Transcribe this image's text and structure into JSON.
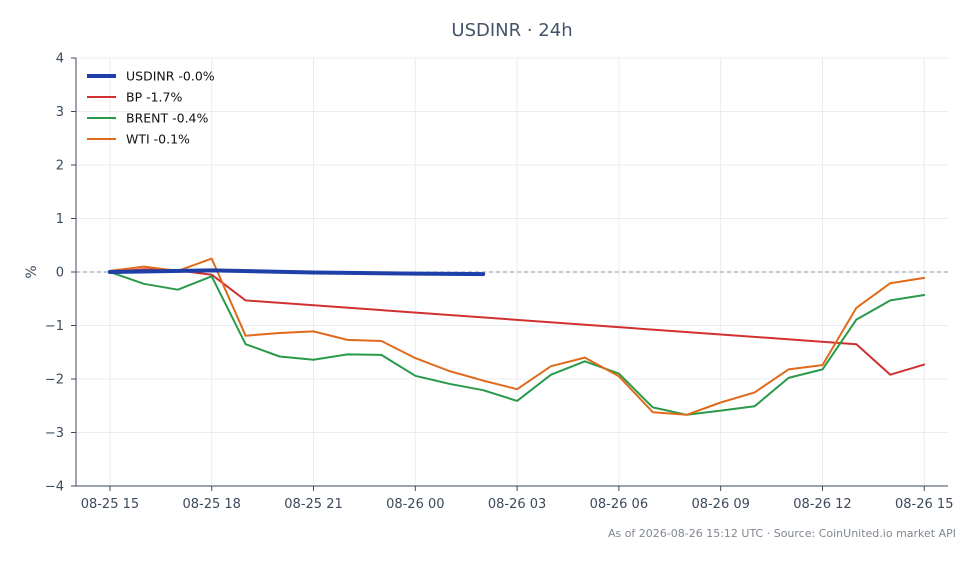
{
  "chart_data": {
    "type": "line",
    "title": "USDINR · 24h",
    "xlabel": "",
    "ylabel": "%",
    "ylim": [
      -4,
      4
    ],
    "xlim": [
      "2026-08-25 14:00",
      "2026-08-26 15:42"
    ],
    "yticks": [
      -4,
      -3,
      -2,
      -1,
      0,
      1,
      2,
      3,
      4
    ],
    "ytick_labels": [
      "−4",
      "−3",
      "−2",
      "−1",
      "0",
      "1",
      "2",
      "3",
      "4"
    ],
    "xticks": [
      {
        "label": "08-25 15",
        "t": "2026-08-25 15:00"
      },
      {
        "label": "08-25 18",
        "t": "2026-08-25 18:00"
      },
      {
        "label": "08-25 21",
        "t": "2026-08-25 21:00"
      },
      {
        "label": "08-26 00",
        "t": "2026-08-26 00:00"
      },
      {
        "label": "08-26 03",
        "t": "2026-08-26 03:00"
      },
      {
        "label": "08-26 06",
        "t": "2026-08-26 06:00"
      },
      {
        "label": "08-26 09",
        "t": "2026-08-26 09:00"
      },
      {
        "label": "08-26 12",
        "t": "2026-08-26 12:00"
      },
      {
        "label": "08-26 15",
        "t": "2026-08-26 15:00"
      }
    ],
    "grid": true,
    "zero_line": true,
    "legend_position": "top-left",
    "series": [
      {
        "name": "USDINR -0.0%",
        "color": "#1f3fa8",
        "bold": true,
        "points": [
          [
            "2026-08-25 15:00",
            0.0
          ],
          [
            "2026-08-25 18:00",
            0.03
          ],
          [
            "2026-08-25 21:00",
            -0.01
          ],
          [
            "2026-08-26 00:00",
            -0.03
          ],
          [
            "2026-08-26 02:00",
            -0.04
          ]
        ]
      },
      {
        "name": "BP -1.7%",
        "color": "#d03030",
        "bold": false,
        "points": [
          [
            "2026-08-25 15:00",
            0.0
          ],
          [
            "2026-08-25 16:00",
            0.05
          ],
          [
            "2026-08-25 17:00",
            0.03
          ],
          [
            "2026-08-25 18:00",
            -0.05
          ],
          [
            "2026-08-25 19:00",
            -0.53
          ],
          [
            "2026-08-26 13:00",
            -1.35
          ],
          [
            "2026-08-26 14:00",
            -1.92
          ],
          [
            "2026-08-26 15:00",
            -1.73
          ]
        ]
      },
      {
        "name": "BRENT -0.4%",
        "color": "#2a9a4a",
        "bold": false,
        "points": [
          [
            "2026-08-25 15:00",
            0.0
          ],
          [
            "2026-08-25 16:00",
            -0.22
          ],
          [
            "2026-08-25 17:00",
            -0.33
          ],
          [
            "2026-08-25 18:00",
            -0.08
          ],
          [
            "2026-08-25 19:00",
            -1.35
          ],
          [
            "2026-08-25 20:00",
            -1.58
          ],
          [
            "2026-08-25 21:00",
            -1.64
          ],
          [
            "2026-08-25 22:00",
            -1.54
          ],
          [
            "2026-08-25 23:00",
            -1.55
          ],
          [
            "2026-08-26 00:00",
            -1.94
          ],
          [
            "2026-08-26 01:00",
            -2.09
          ],
          [
            "2026-08-26 02:00",
            -2.21
          ],
          [
            "2026-08-26 03:00",
            -2.41
          ],
          [
            "2026-08-26 04:00",
            -1.92
          ],
          [
            "2026-08-26 05:00",
            -1.67
          ],
          [
            "2026-08-26 06:00",
            -1.9
          ],
          [
            "2026-08-26 07:00",
            -2.53
          ],
          [
            "2026-08-26 08:00",
            -2.67
          ],
          [
            "2026-08-26 09:00",
            -2.59
          ],
          [
            "2026-08-26 10:00",
            -2.51
          ],
          [
            "2026-08-26 11:00",
            -1.98
          ],
          [
            "2026-08-26 12:00",
            -1.82
          ],
          [
            "2026-08-26 13:00",
            -0.89
          ],
          [
            "2026-08-26 14:00",
            -0.53
          ],
          [
            "2026-08-26 15:00",
            -0.43
          ]
        ]
      },
      {
        "name": "WTI -0.1%",
        "color": "#e06a1c",
        "bold": false,
        "points": [
          [
            "2026-08-25 15:00",
            0.02
          ],
          [
            "2026-08-25 16:00",
            0.1
          ],
          [
            "2026-08-25 17:00",
            0.02
          ],
          [
            "2026-08-25 18:00",
            0.25
          ],
          [
            "2026-08-25 19:00",
            -1.19
          ],
          [
            "2026-08-25 20:00",
            -1.14
          ],
          [
            "2026-08-25 21:00",
            -1.11
          ],
          [
            "2026-08-25 22:00",
            -1.27
          ],
          [
            "2026-08-25 23:00",
            -1.29
          ],
          [
            "2026-08-26 00:00",
            -1.61
          ],
          [
            "2026-08-26 01:00",
            -1.85
          ],
          [
            "2026-08-26 02:00",
            -2.03
          ],
          [
            "2026-08-26 03:00",
            -2.19
          ],
          [
            "2026-08-26 04:00",
            -1.76
          ],
          [
            "2026-08-26 05:00",
            -1.6
          ],
          [
            "2026-08-26 06:00",
            -1.95
          ],
          [
            "2026-08-26 07:00",
            -2.62
          ],
          [
            "2026-08-26 08:00",
            -2.67
          ],
          [
            "2026-08-26 09:00",
            -2.44
          ],
          [
            "2026-08-26 10:00",
            -2.25
          ],
          [
            "2026-08-26 11:00",
            -1.82
          ],
          [
            "2026-08-26 12:00",
            -1.74
          ],
          [
            "2026-08-26 13:00",
            -0.67
          ],
          [
            "2026-08-26 14:00",
            -0.21
          ],
          [
            "2026-08-26 15:00",
            -0.11
          ]
        ]
      }
    ],
    "footer": "As of 2026-08-26 15:12 UTC · Source: CoinUnited.io market API"
  }
}
